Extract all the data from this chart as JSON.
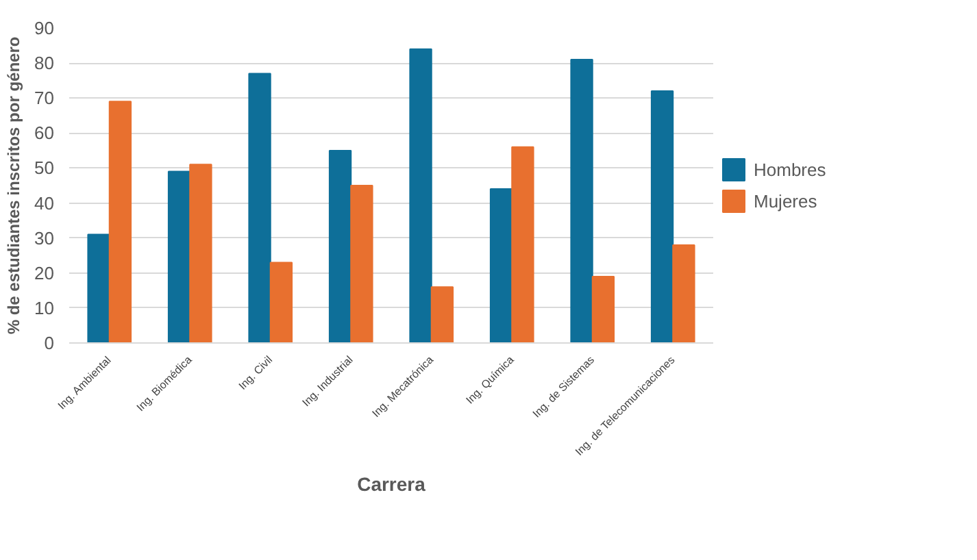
{
  "chart_data": {
    "type": "bar",
    "xlabel": "Carrera",
    "ylabel": "% de estudiantes inscritos por género",
    "categories": [
      "Ing. Ambiental",
      "Ing. Biomédica",
      "Ing. Civil",
      "Ing. Industrial",
      "Ing. Mecatrónica",
      "Ing. Química",
      "Ing. de Sistemas",
      "Ing. de Telecomunicaciones"
    ],
    "series": [
      {
        "name": "Hombres",
        "color": "#0e6f99",
        "values": [
          31,
          49,
          77,
          55,
          84,
          44,
          81,
          72
        ]
      },
      {
        "name": "Mujeres",
        "color": "#e8702f",
        "values": [
          69,
          51,
          23,
          45,
          16,
          56,
          19,
          28
        ]
      }
    ],
    "ylim": [
      0,
      90
    ],
    "yticks": [
      0,
      10,
      20,
      30,
      40,
      50,
      60,
      70,
      80,
      90
    ],
    "grid": "y",
    "legend": "right"
  }
}
